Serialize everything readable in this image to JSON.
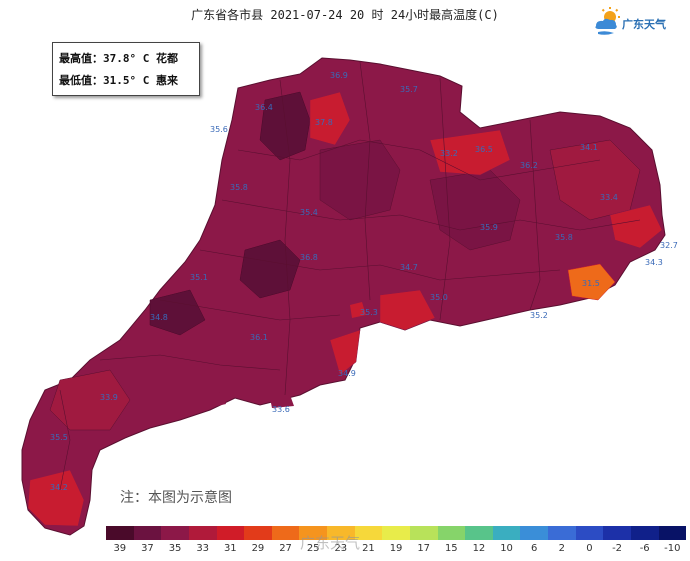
{
  "title": "广东省各市县  2021-07-24 20 时 24小时最高温度(C)",
  "logo": {
    "text": "广东天气",
    "icon": "sun-cloud-icon"
  },
  "info_box": {
    "max_line": "最高值：37.8° C 花都",
    "min_line": "最低值：31.5° C 惠来"
  },
  "note": "注：本图为示意图",
  "watermark": "广东天气",
  "legend": {
    "ticks": [
      "39",
      "37",
      "35",
      "33",
      "31",
      "29",
      "27",
      "25",
      "23",
      "21",
      "19",
      "17",
      "15",
      "12",
      "10",
      "6",
      "2",
      "0",
      "-2",
      "-6",
      "-10"
    ],
    "colors": [
      "#4a0a2a",
      "#6b1240",
      "#8c1848",
      "#b01a3a",
      "#d01c28",
      "#e23b1a",
      "#ee6a1a",
      "#f5941e",
      "#f8b82a",
      "#f6d83a",
      "#e8ec4a",
      "#b8e25a",
      "#86d46a",
      "#58c48a",
      "#3aaec0",
      "#3a8ed8",
      "#3a6cd6",
      "#2c4cc4",
      "#1c30a8",
      "#10208a",
      "#081266"
    ]
  },
  "map_labels": [
    "36.9",
    "35.7",
    "36.4",
    "35.6",
    "36.5",
    "35.8",
    "33.2",
    "34.1",
    "35.8",
    "35.4",
    "32.7",
    "34.3",
    "31.5",
    "35.2",
    "34.9",
    "33.6",
    "35.3",
    "34.7",
    "35.9",
    "36.8",
    "37.8",
    "36.2",
    "35.1",
    "34.8",
    "33.9",
    "35.5",
    "34.2",
    "36.1",
    "35.0",
    "33.4"
  ]
}
